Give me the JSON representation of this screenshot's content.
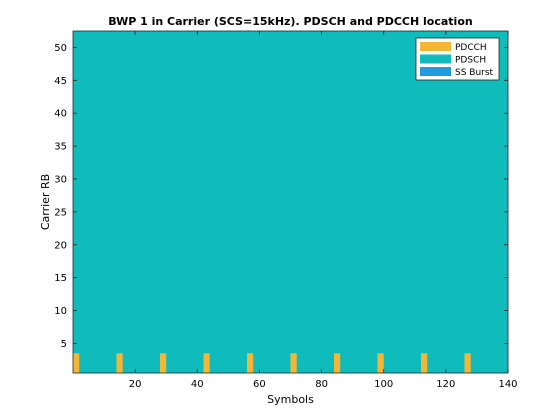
{
  "chart_data": {
    "type": "heatmap",
    "title": "BWP 1 in Carrier (SCS=15kHz). PDSCH and PDCCH location",
    "xlabel": "Symbols",
    "ylabel": "Carrier RB",
    "xlim": [
      0,
      140
    ],
    "ylim": [
      0.5,
      52.5
    ],
    "xticks": [
      20,
      40,
      60,
      80,
      100,
      120,
      140
    ],
    "yticks": [
      5,
      10,
      15,
      20,
      25,
      30,
      35,
      40,
      45,
      50
    ],
    "legend_position": "top-right",
    "series": [
      {
        "name": "PDCCH",
        "color": "#f5b635"
      },
      {
        "name": "PDSCH",
        "color": "#0fbbbb"
      },
      {
        "name": "SS Burst",
        "color": "#1f9be0"
      }
    ],
    "pdsch_region": {
      "symbol_range": [
        0,
        140
      ],
      "rb_range": [
        0.5,
        52.5
      ]
    },
    "pdcch_regions": [
      {
        "symbol_range": [
          0,
          2
        ],
        "rb_range": [
          0.5,
          3.5
        ]
      },
      {
        "symbol_range": [
          14,
          16
        ],
        "rb_range": [
          0.5,
          3.5
        ]
      },
      {
        "symbol_range": [
          28,
          30
        ],
        "rb_range": [
          0.5,
          3.5
        ]
      },
      {
        "symbol_range": [
          42,
          44
        ],
        "rb_range": [
          0.5,
          3.5
        ]
      },
      {
        "symbol_range": [
          56,
          58
        ],
        "rb_range": [
          0.5,
          3.5
        ]
      },
      {
        "symbol_range": [
          70,
          72
        ],
        "rb_range": [
          0.5,
          3.5
        ]
      },
      {
        "symbol_range": [
          84,
          86
        ],
        "rb_range": [
          0.5,
          3.5
        ]
      },
      {
        "symbol_range": [
          98,
          100
        ],
        "rb_range": [
          0.5,
          3.5
        ]
      },
      {
        "symbol_range": [
          112,
          114
        ],
        "rb_range": [
          0.5,
          3.5
        ]
      },
      {
        "symbol_range": [
          126,
          128
        ],
        "rb_range": [
          0.5,
          3.5
        ]
      }
    ]
  }
}
